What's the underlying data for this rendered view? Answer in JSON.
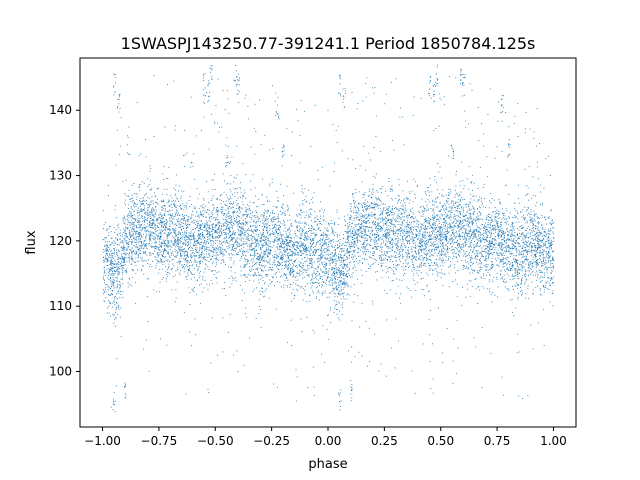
{
  "chart_data": {
    "type": "scatter",
    "title": "1SWASPJ143250.77-391241.1 Period 1850784.125s",
    "xlabel": "phase",
    "ylabel": "flux",
    "xlim": [
      -1.1,
      1.1
    ],
    "ylim": [
      91.5,
      148.0
    ],
    "xticks": [
      -1.0,
      -0.75,
      -0.5,
      -0.25,
      0.0,
      0.25,
      0.5,
      0.75,
      1.0
    ],
    "xtick_labels": [
      "−1.00",
      "−0.75",
      "−0.50",
      "−0.25",
      "0.00",
      "0.25",
      "0.50",
      "0.75",
      "1.00"
    ],
    "yticks": [
      100,
      110,
      120,
      130,
      140
    ],
    "ytick_labels": [
      "100",
      "110",
      "120",
      "130",
      "140"
    ],
    "grid": false,
    "marker_color": "#1f77b4",
    "series": [
      {
        "phase_profile": [
          [
            -1.0,
            117.5
          ],
          [
            -0.97,
            116.0
          ],
          [
            -0.95,
            114.5
          ],
          [
            -0.92,
            116.5
          ],
          [
            -0.9,
            120.5
          ],
          [
            -0.85,
            121.5
          ],
          [
            -0.8,
            122.5
          ],
          [
            -0.75,
            121.0
          ],
          [
            -0.7,
            121.5
          ],
          [
            -0.65,
            120.5
          ],
          [
            -0.6,
            119.5
          ],
          [
            -0.55,
            120.5
          ],
          [
            -0.5,
            121.0
          ],
          [
            -0.45,
            122.0
          ],
          [
            -0.4,
            121.5
          ],
          [
            -0.35,
            120.5
          ],
          [
            -0.3,
            119.5
          ],
          [
            -0.25,
            120.5
          ],
          [
            -0.2,
            119.0
          ],
          [
            -0.15,
            118.0
          ],
          [
            -0.1,
            120.0
          ],
          [
            -0.05,
            118.5
          ],
          [
            0.0,
            118.5
          ],
          [
            0.03,
            116.5
          ],
          [
            0.05,
            115.0
          ],
          [
            0.08,
            117.0
          ],
          [
            0.1,
            120.5
          ],
          [
            0.15,
            121.5
          ],
          [
            0.2,
            122.5
          ],
          [
            0.25,
            121.0
          ],
          [
            0.3,
            121.5
          ],
          [
            0.35,
            120.5
          ],
          [
            0.4,
            119.5
          ],
          [
            0.45,
            120.5
          ],
          [
            0.5,
            121.0
          ],
          [
            0.55,
            122.0
          ],
          [
            0.6,
            121.5
          ],
          [
            0.65,
            120.5
          ],
          [
            0.7,
            119.5
          ],
          [
            0.75,
            120.5
          ],
          [
            0.8,
            119.0
          ],
          [
            0.85,
            118.0
          ],
          [
            0.9,
            120.0
          ],
          [
            0.95,
            118.5
          ],
          [
            1.0,
            117.5
          ]
        ],
        "scatter_sd": 3.2,
        "flare_points": [
          [
            -0.55,
            144.0
          ],
          [
            -0.53,
            143.0
          ],
          [
            -0.52,
            145.5
          ],
          [
            -0.4,
            144.0
          ],
          [
            -0.41,
            145.5
          ],
          [
            -0.23,
            141.0
          ],
          [
            -0.95,
            144.0
          ],
          [
            -0.93,
            142.0
          ],
          [
            0.45,
            144.0
          ],
          [
            0.47,
            143.0
          ],
          [
            0.48,
            145.5
          ],
          [
            0.6,
            144.0
          ],
          [
            0.59,
            145.5
          ],
          [
            0.77,
            141.0
          ],
          [
            0.05,
            144.0
          ],
          [
            0.07,
            142.0
          ],
          [
            -0.95,
            95.5
          ],
          [
            -0.9,
            97.0
          ],
          [
            0.05,
            95.5
          ],
          [
            0.1,
            97.0
          ],
          [
            -0.2,
            134.0
          ],
          [
            0.8,
            134.0
          ],
          [
            -0.45,
            133.0
          ],
          [
            0.55,
            133.0
          ]
        ]
      }
    ]
  }
}
